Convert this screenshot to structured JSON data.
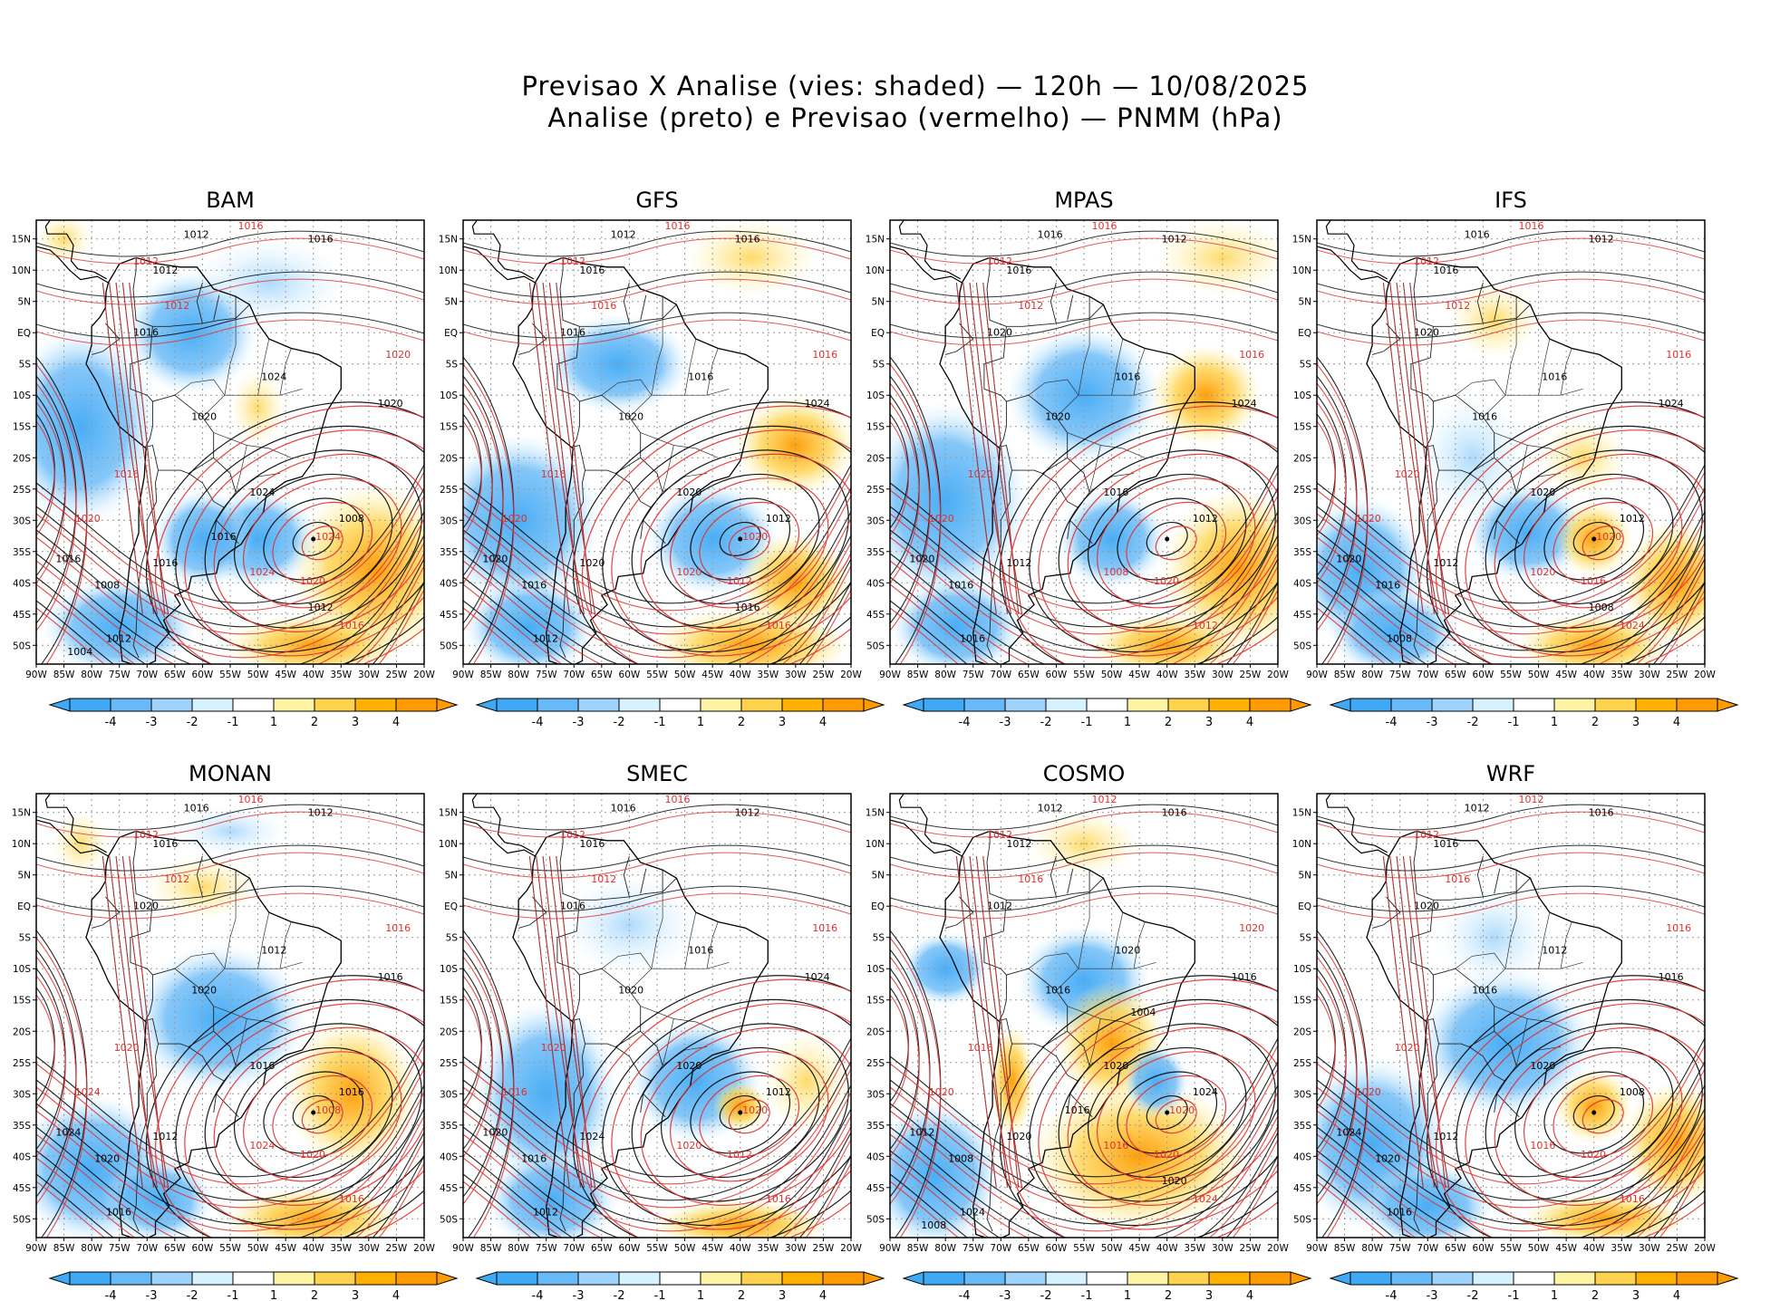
{
  "title": {
    "line1": "Previsao X Analise (vies: shaded) — 120h — 10/08/2025",
    "line2": "Analise (preto) e Previsao (vermelho) — PNMM (hPa)"
  },
  "lat_labels": [
    "15N",
    "10N",
    "5N",
    "EQ",
    "5S",
    "10S",
    "15S",
    "20S",
    "25S",
    "30S",
    "35S",
    "40S",
    "45S",
    "50S"
  ],
  "lon_labels": [
    "90W",
    "85W",
    "80W",
    "75W",
    "70W",
    "65W",
    "60W",
    "55W",
    "50W",
    "45W",
    "40W",
    "35W",
    "30W",
    "25W",
    "20W"
  ],
  "colorbar": {
    "labels": [
      "-4",
      "-3",
      "-2",
      "-1",
      "1",
      "2",
      "3",
      "4"
    ],
    "colors": [
      "#3fa9f5",
      "#67b9f7",
      "#9fd3fb",
      "#d6f2ff",
      "#ffffff",
      "#fff3a6",
      "#ffd34d",
      "#ffb000",
      "#ff9a00"
    ]
  },
  "colors": {
    "analysis_contour": "#000000",
    "forecast_contour": "#e03030",
    "land_outline": "#000000",
    "grid": "#9a9a9a"
  },
  "panels": [
    {
      "model": "BAM",
      "low_center": {
        "lon": -40,
        "lat": -33
      },
      "labels_black": [
        "1012",
        "1016",
        "1012",
        "1016",
        "1020",
        "1024",
        "1016",
        "1012",
        "1008",
        "1016",
        "1020",
        "1024",
        "1008",
        "1012",
        "1016",
        "1004"
      ],
      "labels_red": [
        "1016",
        "1012",
        "1012",
        "1020",
        "1016",
        "1020",
        "1024",
        "1020",
        "1016",
        "1024"
      ]
    },
    {
      "model": "GFS",
      "low_center": {
        "lon": -40,
        "lat": -33
      },
      "labels_black": [
        "1012",
        "1016",
        "1016",
        "1016",
        "1020",
        "1020",
        "1020",
        "1012",
        "1016",
        "1020",
        "1024",
        "1016",
        "1012",
        "1016"
      ],
      "labels_red": [
        "1016",
        "1016",
        "1012",
        "1016",
        "1016",
        "1020",
        "1020",
        "1012",
        "1016",
        "1020"
      ]
    },
    {
      "model": "MPAS",
      "low_center": {
        "lon": -40,
        "lat": -33
      },
      "labels_black": [
        "1016",
        "1012",
        "1016",
        "1020",
        "1020",
        "1016",
        "1012",
        "1016",
        "1016",
        "1020",
        "1024",
        "1016",
        "1012"
      ],
      "labels_red": [
        "1016",
        "1012",
        "1012",
        "1016",
        "1020",
        "1020",
        "1008",
        "1020",
        "1012"
      ]
    },
    {
      "model": "IFS",
      "low_center": {
        "lon": -40,
        "lat": -33
      },
      "labels_black": [
        "1016",
        "1012",
        "1016",
        "1020",
        "1016",
        "1020",
        "1012",
        "1008",
        "1016",
        "1020",
        "1024",
        "1016",
        "1012",
        "1008"
      ],
      "labels_red": [
        "1016",
        "1012",
        "1012",
        "1016",
        "1020",
        "1020",
        "1020",
        "1016",
        "1024",
        "1020"
      ]
    },
    {
      "model": "MONAN",
      "low_center": {
        "lon": -40,
        "lat": -33
      },
      "labels_black": [
        "1016",
        "1012",
        "1016",
        "1020",
        "1020",
        "1016",
        "1012",
        "1016",
        "1020",
        "1024",
        "1016",
        "1012",
        "1016"
      ],
      "labels_red": [
        "1016",
        "1012",
        "1012",
        "1016",
        "1020",
        "1024",
        "1024",
        "1020",
        "1016",
        "1008"
      ]
    },
    {
      "model": "SMEC",
      "low_center": {
        "lon": -40,
        "lat": -33
      },
      "labels_black": [
        "1016",
        "1012",
        "1016",
        "1016",
        "1020",
        "1020",
        "1024",
        "1012",
        "1016",
        "1020",
        "1024",
        "1016",
        "1012"
      ],
      "labels_red": [
        "1016",
        "1012",
        "1012",
        "1016",
        "1020",
        "1016",
        "1020",
        "1012",
        "1016",
        "1020"
      ]
    },
    {
      "model": "COSMO",
      "low_center": {
        "lon": -40,
        "lat": -33
      },
      "labels_black": [
        "1012",
        "1016",
        "1012",
        "1012",
        "1016",
        "1020",
        "1020",
        "1024",
        "1008",
        "1012",
        "1016",
        "1020",
        "1024",
        "1020",
        "1016",
        "1008",
        "1004"
      ],
      "labels_red": [
        "1012",
        "1016",
        "1012",
        "1020",
        "1016",
        "1020",
        "1016",
        "1020",
        "1024",
        "1020"
      ]
    },
    {
      "model": "WRF",
      "low_center": {
        "lon": -40,
        "lat": -33
      },
      "labels_black": [
        "1012",
        "1016",
        "1016",
        "1020",
        "1016",
        "1020",
        "1012",
        "1016",
        "1020",
        "1024",
        "1016",
        "1012",
        "1008"
      ],
      "labels_red": [
        "1012",
        "1016",
        "1012",
        "1016",
        "1020",
        "1020",
        "1016",
        "1020",
        "1016"
      ]
    }
  ]
}
